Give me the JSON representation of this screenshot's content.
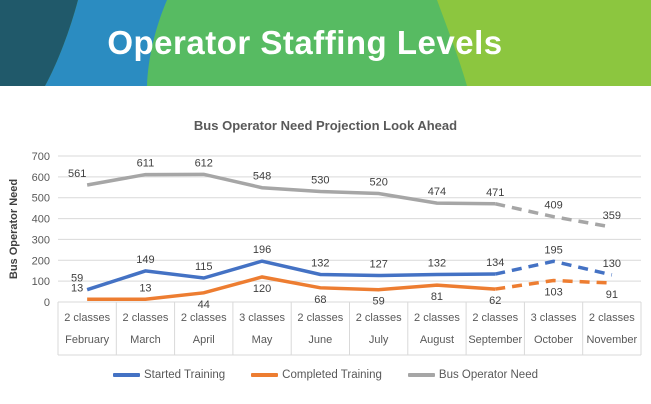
{
  "header": {
    "title": "Operator Staffing Levels",
    "colors": {
      "teal": "#20596a",
      "blue": "#2b8cc1",
      "green": "#57bb62",
      "light_green": "#8cc63f"
    }
  },
  "chart_data": {
    "type": "line",
    "title": "Bus Operator Need Projection Look Ahead",
    "ylabel": "Bus Operator Need",
    "ylim": [
      0,
      700
    ],
    "ytick_step": 100,
    "grid": true,
    "legend_position": "bottom",
    "categories": [
      "February",
      "March",
      "April",
      "May",
      "June",
      "July",
      "August",
      "September",
      "October",
      "November"
    ],
    "category_classes": [
      "2 classes",
      "2 classes",
      "2 classes",
      "3 classes",
      "2 classes",
      "2 classes",
      "2 classes",
      "2 classes",
      "3 classes",
      "2 classes"
    ],
    "dashed_from_index": 7,
    "series": [
      {
        "name": "Started Training",
        "color": "#4472c4",
        "values": [
          59,
          149,
          115,
          196,
          132,
          127,
          132,
          134,
          195,
          130
        ],
        "label_placement": [
          "above",
          "above",
          "above",
          "above",
          "above",
          "above",
          "above",
          "above",
          "above",
          "above"
        ]
      },
      {
        "name": "Completed Training",
        "color": "#ed7d31",
        "values": [
          13,
          13,
          44,
          120,
          68,
          59,
          81,
          62,
          103,
          91
        ],
        "label_placement": [
          "above",
          "above",
          "below",
          "below",
          "below",
          "below",
          "below",
          "below",
          "below",
          "below"
        ]
      },
      {
        "name": "Bus Operator Need",
        "color": "#a6a6a6",
        "values": [
          561,
          611,
          612,
          548,
          530,
          520,
          474,
          471,
          409,
          359
        ],
        "label_placement": [
          "above",
          "above",
          "above",
          "above",
          "above",
          "above",
          "above",
          "above",
          "above",
          "above"
        ]
      }
    ],
    "axis_colors": {
      "gridline": "#d9d9d9",
      "tick_label": "#595959",
      "data_label": "#404040"
    }
  }
}
